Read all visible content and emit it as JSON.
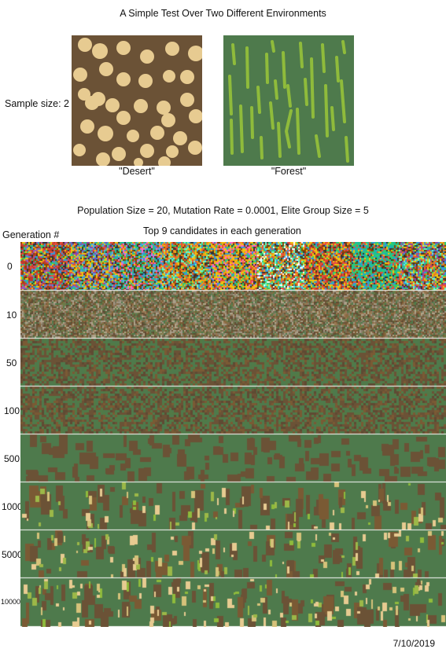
{
  "title": "A Simple Test Over Two Different Environments",
  "sample_size_label": "Sample size: 2",
  "environments": [
    {
      "name": "\"Desert\"",
      "background_color": "#6b5236",
      "pattern_color": "#e7cb91",
      "pattern": "circles"
    },
    {
      "name": "\"Forest\"",
      "background_color": "#4e7a4c",
      "pattern_color": "#8fbb3b",
      "pattern": "vertical-stripes"
    }
  ],
  "parameters_label": "Population Size = 20, Mutation Rate = 0.0001, Elite Group Size = 5",
  "generation_header": "Generation #",
  "candidates_header": "Top 9 candidates in each generation",
  "generations": [
    "0",
    "10",
    "50",
    "100",
    "500",
    "1000",
    "5000",
    "10000"
  ],
  "candidates_per_generation": 9,
  "date": "7/10/2019"
}
